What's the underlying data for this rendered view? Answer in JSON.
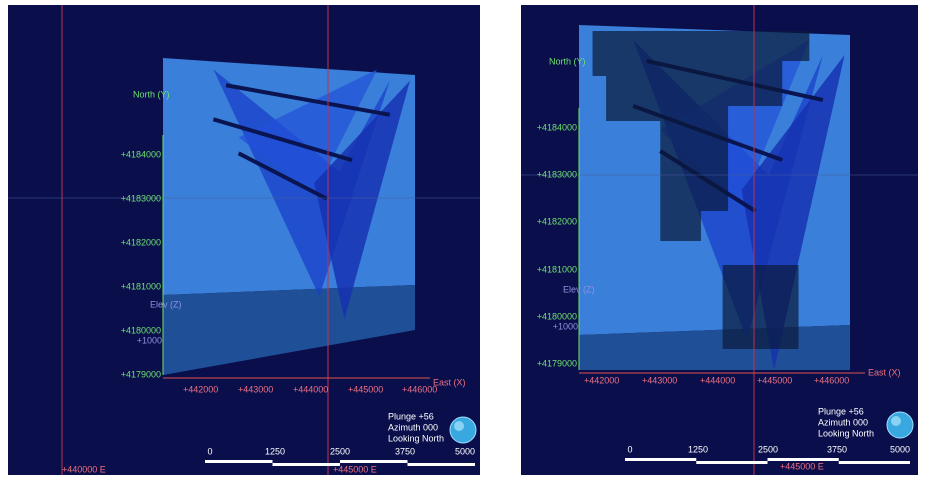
{
  "panels": [
    {
      "north_axis": {
        "label": "North (Y)",
        "ticks": [
          "+4184000",
          "+4183000",
          "+4182000",
          "+4181000",
          "+4180000",
          "+4179000"
        ]
      },
      "east_axis": {
        "label": "East (X)",
        "ticks": [
          "+442000",
          "+443000",
          "+444000",
          "+445000",
          "+446000"
        ]
      },
      "elev_axis": {
        "label": "Elev (Z)",
        "ticks": [
          "+1000"
        ]
      },
      "grid_labels": [
        "+440000 E",
        "+445000 E"
      ],
      "orientation": [
        "Plunge +56",
        "Azimuth 000",
        "Looking North"
      ],
      "scale_bar": [
        "0",
        "1250",
        "2500",
        "3750",
        "5000"
      ]
    },
    {
      "north_axis": {
        "label": "North (Y)",
        "ticks": [
          "+4184000",
          "+4183000",
          "+4182000",
          "+4181000",
          "+4180000",
          "+4179000"
        ]
      },
      "east_axis": {
        "label": "East (X)",
        "ticks": [
          "+442000",
          "+443000",
          "+444000",
          "+445000",
          "+446000"
        ]
      },
      "elev_axis": {
        "label": "Elev (Z)",
        "ticks": [
          "+1000"
        ]
      },
      "grid_labels": [
        "+445000 E"
      ],
      "orientation": [
        "Plunge +56",
        "Azimuth 000",
        "Looking North"
      ],
      "scale_bar": [
        "0",
        "1250",
        "2500",
        "3750",
        "5000"
      ]
    }
  ]
}
